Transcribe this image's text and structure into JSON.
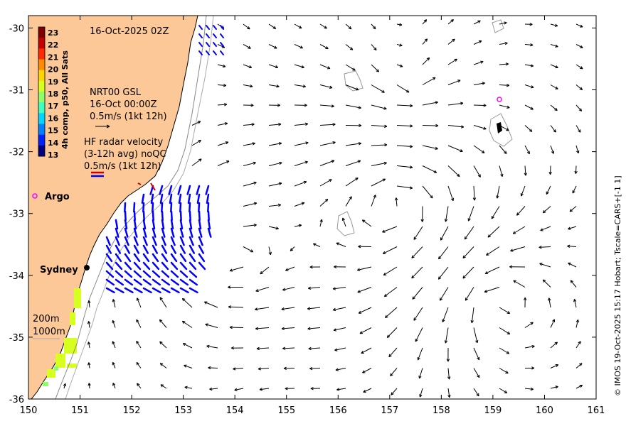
{
  "map": {
    "title": "16-Oct-2025 02Z",
    "lon_ticks": [
      150,
      151,
      152,
      153,
      154,
      155,
      156,
      157,
      158,
      159,
      160,
      161
    ],
    "lat_ticks": [
      -30,
      -31,
      -32,
      -33,
      -34,
      -35,
      -36
    ],
    "lon_range": [
      150,
      161
    ],
    "lat_range": [
      -36,
      -29.8
    ],
    "credit": "© IMOS 19-Oct-2025 15:17 Hobart; Tscale=CARS+[-1 1]"
  },
  "colorbar": {
    "label": "4h comp, p50, All Sats",
    "ticks": [
      "23",
      "22",
      "21",
      "20",
      "19",
      "18",
      "17",
      "16",
      "15",
      "14",
      "13"
    ],
    "colors": [
      "#7f0000",
      "#c40000",
      "#ff2a00",
      "#ff8c00",
      "#ffd500",
      "#d7ff1f",
      "#8cff6a",
      "#3dffc0",
      "#00d4ff",
      "#0080ff",
      "#0022ff",
      "#00007f"
    ]
  },
  "legend_nrt": {
    "line1": "NRT00 GSL",
    "line2": "16-Oct 00:00Z",
    "line3": "0.5m/s (1kt 12h)"
  },
  "legend_hf": {
    "line1": "HF radar velocity",
    "line2": "(3-12h avg) noQC",
    "line3": "0.5m/s (1kt 12h)"
  },
  "places": {
    "argo": "Argo",
    "sydney": "Sydney"
  },
  "isobaths": {
    "shallow": "200m",
    "deep": "1000m"
  },
  "colors": {
    "land": "#fdc897",
    "hf_vectors": "#0000ff",
    "argo_marker": "#ff00ff",
    "coast_patch": "#d7ff1f"
  }
}
